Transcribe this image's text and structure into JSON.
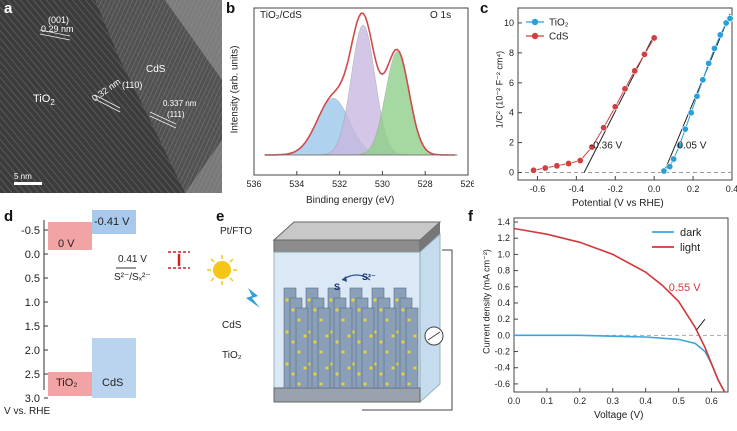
{
  "figure": {
    "panels": {
      "a": "a",
      "b": "b",
      "c": "c",
      "d": "d",
      "e": "e",
      "f": "f"
    }
  },
  "panel_a": {
    "labels": {
      "tio2": "TiO",
      "tio2_sub": "2",
      "cds": "CdS",
      "lattice_001": "(001)",
      "lattice_029": "0.29 nm",
      "lattice_032": "0.32 nm",
      "lattice_110": "(110)",
      "lattice_0337": "0.337 nm",
      "lattice_111": "(111)",
      "scale": "5 nm"
    }
  },
  "panel_b": {
    "sample": "TiO₂/CdS",
    "region": "O 1s",
    "ylabel": "Intensity (arb. units)",
    "xlabel": "Binding energy (eV)",
    "xticks": [
      "536",
      "534",
      "532",
      "530",
      "528",
      "526"
    ],
    "colors": {
      "envelope": "#d04a4a",
      "peak1": "#9cc8ec",
      "peak2": "#c9b8e0",
      "peak3": "#8fd08a",
      "raw": "#888888"
    }
  },
  "panel_c": {
    "ylabel": "1/C² (10⁻² F⁻² cm⁴)",
    "xlabel": "Potential (V vs RHE)",
    "xticks": [
      "-0.6",
      "-0.4",
      "-0.2",
      "0.0",
      "0.2",
      "0.4"
    ],
    "yticks": [
      "0",
      "2",
      "4",
      "6",
      "8",
      "10"
    ],
    "legend": [
      "TiO₂",
      "CdS"
    ],
    "annotations": [
      "-0.36 V",
      "0.05 V"
    ],
    "colors": {
      "tio2": "#2a9fd8",
      "cds": "#d04040"
    }
  },
  "panel_d": {
    "yticks": [
      "-0.5",
      "0.0",
      "0.5",
      "1.0",
      "1.5",
      "2.0",
      "2.5",
      "3.0"
    ],
    "axis_label": "V vs. RHE",
    "tio2_cb": "0 V",
    "cds_cb": "-0.41 V",
    "redox_value": "0.41 V",
    "redox_couple": "S²⁻/Sₓ²⁻",
    "tio2_label": "TiO₂",
    "cds_label": "CdS",
    "colors": {
      "tio2": "#f2a3a3",
      "cds": "#a9c9ec",
      "marker": "#d32020"
    }
  },
  "panel_e": {
    "top_label": "Pt/FTO",
    "ions": [
      "S²⁻",
      "S"
    ],
    "cds_label": "CdS",
    "tio2_label": "TiO₂"
  },
  "panel_f": {
    "ylabel": "Current density (mA cm⁻²)",
    "xlabel": "Voltage (V)",
    "xticks": [
      "0.0",
      "0.1",
      "0.2",
      "0.3",
      "0.4",
      "0.5",
      "0.6"
    ],
    "yticks": [
      "1.4",
      "1.2",
      "1.0",
      "0.8",
      "0.6",
      "0.4",
      "0.2",
      "0.0",
      "-0.2",
      "-0.4",
      "-0.6"
    ],
    "legend": [
      "dark",
      "light"
    ],
    "annotation": "0.55 V",
    "colors": {
      "dark": "#3aa6d8",
      "light": "#d03a3a"
    }
  },
  "chart_data": [
    {
      "type": "area",
      "panel": "b",
      "title": "O 1s",
      "xlabel": "Binding energy (eV)",
      "ylabel": "Intensity (arb. units)",
      "xlim": [
        536,
        526
      ],
      "peaks_center_eV": [
        532.3,
        530.9,
        529.3
      ],
      "series": [
        {
          "name": "envelope",
          "x": [
            535.5,
            534,
            533,
            532.3,
            531.6,
            531,
            530.6,
            530,
            529.3,
            528.6,
            528,
            527,
            526.5
          ],
          "values": [
            0.14,
            0.17,
            0.28,
            0.46,
            0.74,
            0.96,
            0.8,
            0.66,
            0.78,
            0.48,
            0.2,
            0.13,
            0.12
          ]
        }
      ]
    },
    {
      "type": "scatter",
      "panel": "c",
      "xlabel": "Potential (V vs RHE)",
      "ylabel": "1/C² (10⁻² F⁻² cm⁴)",
      "xlim": [
        -0.7,
        0.4
      ],
      "ylim": [
        -0.5,
        11
      ],
      "series": [
        {
          "name": "TiO₂",
          "x": [
            0.05,
            0.08,
            0.1,
            0.13,
            0.16,
            0.19,
            0.22,
            0.25,
            0.28,
            0.31,
            0.34,
            0.37,
            0.39
          ],
          "values": [
            0.1,
            0.4,
            0.9,
            1.8,
            2.9,
            4.0,
            5.1,
            6.2,
            7.3,
            8.3,
            9.2,
            10.0,
            10.3
          ]
        },
        {
          "name": "CdS",
          "x": [
            -0.62,
            -0.56,
            -0.5,
            -0.44,
            -0.38,
            -0.32,
            -0.26,
            -0.2,
            -0.15,
            -0.1,
            -0.05,
            0.0
          ],
          "values": [
            0.15,
            0.3,
            0.45,
            0.6,
            0.8,
            1.7,
            3.0,
            4.4,
            5.6,
            6.8,
            7.9,
            9.0
          ]
        }
      ],
      "annotations": [
        "-0.36 V",
        "0.05 V"
      ]
    },
    {
      "type": "line",
      "panel": "f",
      "xlabel": "Voltage (V)",
      "ylabel": "Current density (mA cm⁻²)",
      "xlim": [
        0,
        0.65
      ],
      "ylim": [
        -0.7,
        1.45
      ],
      "series": [
        {
          "name": "dark",
          "x": [
            0,
            0.1,
            0.2,
            0.3,
            0.4,
            0.5,
            0.55,
            0.58,
            0.6,
            0.62,
            0.64
          ],
          "values": [
            0.0,
            0.0,
            0.0,
            -0.01,
            -0.02,
            -0.05,
            -0.1,
            -0.2,
            -0.35,
            -0.55,
            -0.7
          ]
        },
        {
          "name": "light",
          "x": [
            0,
            0.1,
            0.2,
            0.3,
            0.4,
            0.45,
            0.5,
            0.55,
            0.58,
            0.6,
            0.62,
            0.64
          ],
          "values": [
            1.32,
            1.25,
            1.15,
            1.0,
            0.78,
            0.62,
            0.42,
            0.1,
            -0.15,
            -0.35,
            -0.55,
            -0.7
          ]
        }
      ],
      "annotation": "0.55 V"
    }
  ]
}
